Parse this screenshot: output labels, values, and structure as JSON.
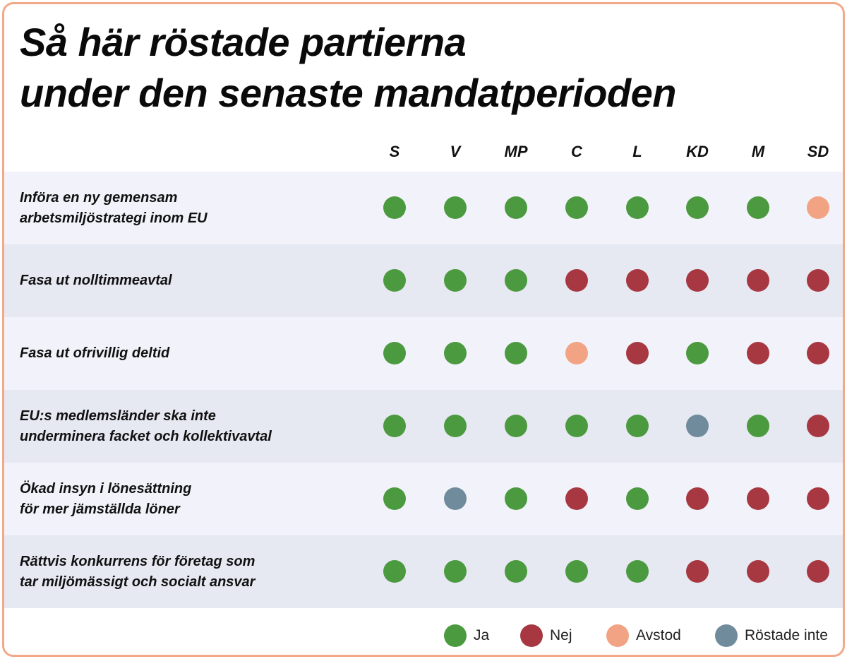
{
  "colors": {
    "Ja": "#4c9a3f",
    "Nej": "#a73842",
    "Avstod": "#f2a383",
    "Röstade inte": "#6f8b9c",
    "row_odd": "#f2f3fa",
    "row_even": "#e6e8f2",
    "border": "#f2a98a"
  },
  "chart_data": {
    "type": "table",
    "title": "Så här röstade partierna\nunder den senaste mandatperioden",
    "title_lines": [
      "Så här röstade partierna",
      "under den senaste mandatperioden"
    ],
    "parties": [
      "S",
      "V",
      "MP",
      "C",
      "L",
      "KD",
      "M",
      "SD"
    ],
    "rows": [
      {
        "label": "Införa en ny gemensam\narbetsmiljöstrategi inom EU",
        "votes": [
          "Ja",
          "Ja",
          "Ja",
          "Ja",
          "Ja",
          "Ja",
          "Ja",
          "Avstod"
        ]
      },
      {
        "label": "Fasa ut nolltimmeavtal",
        "votes": [
          "Ja",
          "Ja",
          "Ja",
          "Nej",
          "Nej",
          "Nej",
          "Nej",
          "Nej"
        ]
      },
      {
        "label": "Fasa ut ofrivillig deltid",
        "votes": [
          "Ja",
          "Ja",
          "Ja",
          "Avstod",
          "Nej",
          "Ja",
          "Nej",
          "Nej"
        ]
      },
      {
        "label": "EU:s medlemsländer ska inte\nunderminera facket och kollektivavtal",
        "votes": [
          "Ja",
          "Ja",
          "Ja",
          "Ja",
          "Ja",
          "Röstade inte",
          "Ja",
          "Nej"
        ]
      },
      {
        "label": "Ökad insyn i lönesättning\nför mer jämställda löner",
        "votes": [
          "Ja",
          "Röstade inte",
          "Ja",
          "Nej",
          "Ja",
          "Nej",
          "Nej",
          "Nej"
        ]
      },
      {
        "label": "Rättvis konkurrens för företag som\ntar miljömässigt och socialt ansvar",
        "votes": [
          "Ja",
          "Ja",
          "Ja",
          "Ja",
          "Ja",
          "Nej",
          "Nej",
          "Nej"
        ]
      }
    ],
    "legend": [
      "Ja",
      "Nej",
      "Avstod",
      "Röstade inte"
    ],
    "legend_position": "bottom-right"
  }
}
